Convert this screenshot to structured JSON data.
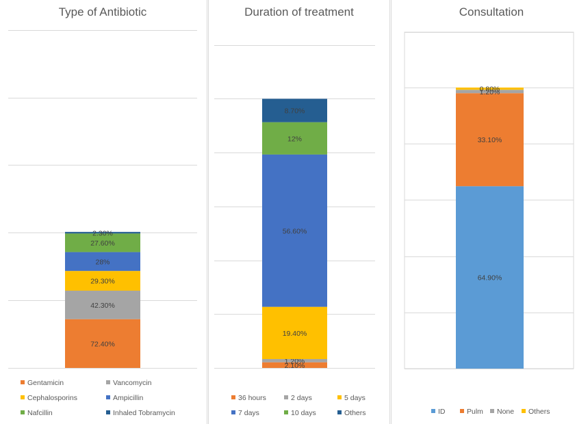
{
  "chart_data": [
    {
      "type": "bar",
      "title": "Type of Antibiotic",
      "stacked": true,
      "legend_position": "bottom",
      "grid": true,
      "series": [
        {
          "name": "Gentamicin",
          "value": 72.4,
          "label": "72.40%",
          "color": "#ED7D31"
        },
        {
          "name": "Vancomycin",
          "value": 42.3,
          "label": "42.30%",
          "color": "#A5A5A5"
        },
        {
          "name": "Cephalosporins",
          "value": 29.3,
          "label": "29.30%",
          "color": "#FFC000"
        },
        {
          "name": "Ampicillin",
          "value": 28,
          "label": "28%",
          "color": "#4472C4"
        },
        {
          "name": "Nafcillin",
          "value": 27.6,
          "label": "27.60%",
          "color": "#70AD47"
        },
        {
          "name": "Inhaled Tobramycin",
          "value": 2.3,
          "label": "2.30%",
          "color": "#255E91"
        }
      ]
    },
    {
      "type": "bar",
      "title": "Duration of treatment",
      "stacked": true,
      "legend_position": "bottom",
      "grid": true,
      "series": [
        {
          "name": "36 hours",
          "value": 2.1,
          "label": "2.10%",
          "color": "#ED7D31"
        },
        {
          "name": "2 days",
          "value": 1.2,
          "label": "1.20%",
          "color": "#A5A5A5"
        },
        {
          "name": "5 days",
          "value": 19.4,
          "label": "19.40%",
          "color": "#FFC000"
        },
        {
          "name": "7 days",
          "value": 56.6,
          "label": "56.60%",
          "color": "#4472C4"
        },
        {
          "name": "10 days",
          "value": 12,
          "label": "12%",
          "color": "#70AD47"
        },
        {
          "name": "Others",
          "value": 8.7,
          "label": "8.70%",
          "color": "#255E91"
        }
      ]
    },
    {
      "type": "bar",
      "title": "Consultation",
      "stacked": true,
      "legend_position": "bottom",
      "grid": true,
      "series": [
        {
          "name": "ID",
          "value": 64.9,
          "label": "64.90%",
          "color": "#5B9BD5"
        },
        {
          "name": "Pulm",
          "value": 33.1,
          "label": "33.10%",
          "color": "#ED7D31"
        },
        {
          "name": "None",
          "value": 1.2,
          "label": "1.20%",
          "color": "#A5A5A5"
        },
        {
          "name": "Others",
          "value": 0.8,
          "label": "0.80%",
          "color": "#FFC000"
        }
      ]
    }
  ]
}
